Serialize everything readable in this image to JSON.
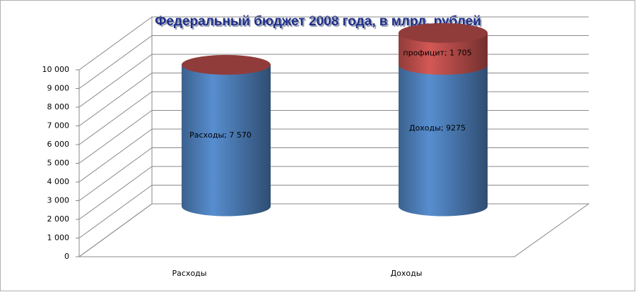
{
  "chart_data": {
    "type": "bar3d-cylinder-stacked",
    "title": "Федеральный бюджет 2008 года, в млрд. рублей",
    "categories": [
      "Расходы",
      "Доходы"
    ],
    "series": [
      {
        "color": "#4f81bd",
        "values": [
          7570,
          7570
        ],
        "value_labels": [
          "Расходы; 7 570",
          null
        ]
      },
      {
        "color": "#c0504d",
        "values": [
          null,
          1705
        ],
        "value_labels": [
          null,
          "профицит; 1 705"
        ]
      }
    ],
    "annotations": [
      "Доходы; 9275"
    ],
    "ylim": [
      0,
      10000
    ],
    "yticks": [
      0,
      {
        "value": 1000,
        "label": "1 000"
      },
      {
        "value": 2000,
        "label": "2 000"
      },
      {
        "value": 3000,
        "label": "3 000"
      },
      {
        "value": 4000,
        "label": "4 000"
      },
      {
        "value": 5000,
        "label": "5 000"
      },
      {
        "value": 6000,
        "label": "6 000"
      },
      {
        "value": 7000,
        "label": "7 000"
      },
      {
        "value": 8000,
        "label": "8 000"
      },
      {
        "value": 9000,
        "label": "9 000"
      },
      {
        "value": 10000,
        "label": "10 000"
      }
    ],
    "grid": true
  }
}
